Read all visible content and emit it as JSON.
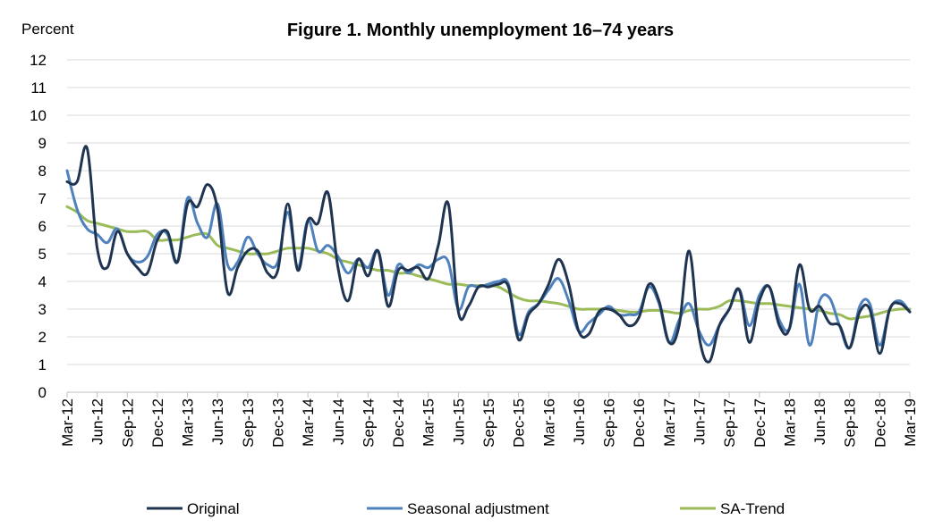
{
  "chart_data": {
    "type": "line",
    "title": "Figure 1. Monthly unemployment 16–74 years",
    "ylabel": "Percent",
    "xlabel": "",
    "ylim": [
      0,
      12
    ],
    "yticks": [
      0,
      1,
      2,
      3,
      4,
      5,
      6,
      7,
      8,
      9,
      10,
      11,
      12
    ],
    "grid": true,
    "legend": "bottom",
    "x_tick_labels": [
      "Mar-12",
      "Jun-12",
      "Sep-12",
      "Dec-12",
      "Mar-13",
      "Jun-13",
      "Sep-13",
      "Dec-13",
      "Mar-14",
      "Jun-14",
      "Sep-14",
      "Dec-14",
      "Mar-15",
      "Jun-15",
      "Sep-15",
      "Dec-15",
      "Mar-16",
      "Jun-16",
      "Sep-16",
      "Dec-16",
      "Mar-17",
      "Jun-17",
      "Sep-17",
      "Dec-17",
      "Mar-18",
      "Jun-18",
      "Sep-18",
      "Dec-18",
      "Mar-19"
    ],
    "series": [
      {
        "name": "Original",
        "color": "#1f3450",
        "values": [
          7.6,
          7.6,
          8.8,
          5.2,
          4.5,
          5.8,
          5.0,
          4.5,
          4.3,
          5.5,
          5.8,
          4.7,
          6.8,
          6.7,
          7.5,
          6.6,
          3.6,
          4.5,
          5.1,
          5.1,
          4.3,
          4.4,
          6.8,
          4.4,
          6.2,
          6.1,
          7.2,
          4.5,
          3.3,
          4.8,
          4.2,
          5.1,
          3.1,
          4.4,
          4.4,
          4.5,
          4.1,
          5.3,
          6.8,
          2.9,
          3.1,
          3.8,
          3.8,
          3.9,
          3.8,
          1.9,
          2.8,
          3.2,
          3.9,
          4.8,
          3.9,
          2.2,
          2.1,
          2.9,
          3.0,
          2.8,
          2.4,
          2.7,
          3.9,
          3.3,
          1.8,
          2.4,
          5.1,
          2.0,
          1.1,
          2.4,
          3.0,
          3.7,
          1.8,
          3.3,
          3.8,
          2.4,
          2.3,
          4.6,
          3.0,
          3.1,
          2.5,
          2.4,
          1.6,
          2.9,
          3.0,
          1.4,
          3.0,
          3.2,
          2.9
        ]
      },
      {
        "name": "Seasonal adjustment",
        "color": "#4f81bd",
        "values": [
          8.0,
          6.6,
          5.9,
          5.7,
          5.4,
          5.9,
          5.0,
          4.7,
          4.9,
          5.7,
          5.7,
          4.7,
          7.0,
          6.1,
          5.6,
          6.8,
          4.6,
          4.7,
          5.6,
          5.0,
          4.6,
          4.7,
          6.5,
          4.5,
          6.2,
          5.1,
          5.3,
          4.9,
          4.3,
          4.8,
          4.5,
          5.1,
          3.5,
          4.6,
          4.3,
          4.6,
          4.5,
          4.8,
          4.7,
          3.0,
          3.8,
          3.8,
          3.9,
          4.0,
          3.9,
          2.1,
          2.9,
          3.2,
          3.7,
          4.1,
          3.3,
          2.2,
          2.5,
          2.8,
          3.1,
          2.8,
          2.8,
          2.9,
          3.8,
          3.2,
          1.8,
          2.6,
          3.2,
          2.2,
          1.7,
          2.4,
          3.0,
          3.7,
          2.4,
          3.5,
          3.8,
          2.6,
          2.3,
          3.9,
          1.7,
          3.3,
          3.4,
          2.4,
          1.6,
          3.1,
          3.2,
          1.7,
          3.0,
          3.3,
          2.9
        ]
      },
      {
        "name": "SA-Trend",
        "color": "#9bbb59",
        "values": [
          6.7,
          6.5,
          6.2,
          6.1,
          6.0,
          5.9,
          5.8,
          5.8,
          5.8,
          5.5,
          5.5,
          5.5,
          5.6,
          5.7,
          5.7,
          5.3,
          5.2,
          5.1,
          5.0,
          5.0,
          5.0,
          5.1,
          5.2,
          5.2,
          5.2,
          5.1,
          5.0,
          4.8,
          4.7,
          4.6,
          4.5,
          4.4,
          4.4,
          4.3,
          4.3,
          4.2,
          4.1,
          4.0,
          3.9,
          3.9,
          3.85,
          3.85,
          3.85,
          3.8,
          3.6,
          3.4,
          3.3,
          3.3,
          3.25,
          3.2,
          3.1,
          3.0,
          3.0,
          3.0,
          3.0,
          2.95,
          2.9,
          2.9,
          2.95,
          2.95,
          2.9,
          2.85,
          2.95,
          3.0,
          3.0,
          3.1,
          3.3,
          3.3,
          3.25,
          3.2,
          3.2,
          3.15,
          3.1,
          3.05,
          3.0,
          2.95,
          2.85,
          2.8,
          2.65,
          2.7,
          2.75,
          2.85,
          2.95,
          3.0,
          3.0
        ]
      }
    ]
  }
}
